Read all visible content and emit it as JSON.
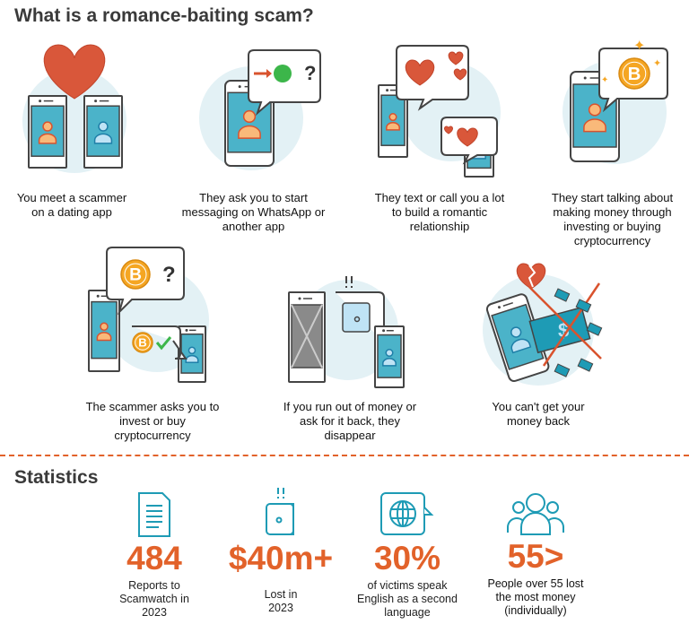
{
  "title": "What is a romance-baiting scam?",
  "steps": [
    {
      "text": "You meet a scammer on a dating app",
      "icon": "two-phones-heart-icon"
    },
    {
      "text": "They ask you to start messaging on WhatsApp or another app",
      "icon": "phone-whatsapp-icon"
    },
    {
      "text": "They text or call you a lot to build a romantic relationship",
      "icon": "phones-hearts-icon"
    },
    {
      "text": "They start talking about making money through investing or buying cryptocurrency",
      "icon": "phone-bitcoin-icon"
    },
    {
      "text": "The scammer asks you to invest or buy cryptocurrency",
      "icon": "phones-bitcoin-question-icon"
    },
    {
      "text": "If you run out of money or ask for it back, they disappear",
      "icon": "phone-empty-wallet-icon"
    },
    {
      "text": "You can't get your money back",
      "icon": "phone-lost-money-icon"
    }
  ],
  "statistics": {
    "title": "Statistics",
    "items": [
      {
        "value": "484",
        "label": "Reports to Scamwatch in 2023",
        "icon": "document-icon"
      },
      {
        "value": "$40m+",
        "label": "Lost in 2023",
        "icon": "empty-wallet-icon"
      },
      {
        "value": "30%",
        "label": "of victims speak English as a second language",
        "icon": "globe-speech-icon"
      },
      {
        "value": "55>",
        "label": "People over 55 lost the most money (individually)",
        "icon": "people-group-icon"
      }
    ]
  },
  "colors": {
    "accent": "#e2622a",
    "icon_teal": "#1e9bb5",
    "bg_circle": "#e3f1f5",
    "heart": "#d9573a"
  }
}
